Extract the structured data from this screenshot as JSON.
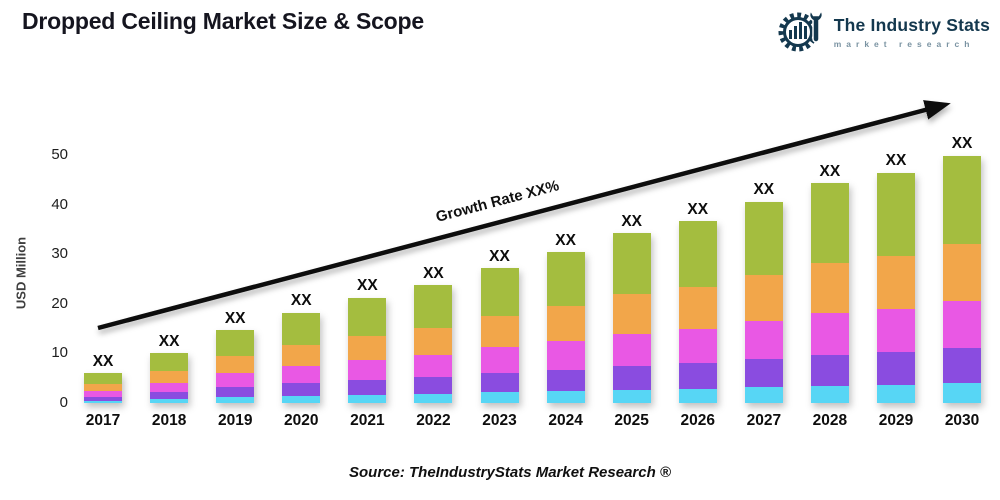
{
  "header": {
    "title": "Dropped Ceiling Market Size & Scope",
    "logo": {
      "icon": "gear-wrench-chart-icon",
      "name": "The Industry Stats",
      "subtitle": "market research",
      "brand_color": "#14384e",
      "subtitle_color": "#7a93a2"
    }
  },
  "chart_data": {
    "type": "bar",
    "stacked": true,
    "title": "Dropped Ceiling Market Size & Scope",
    "xlabel": "",
    "ylabel": "USD Million",
    "ylim": [
      0,
      55
    ],
    "yticks": [
      0,
      10,
      20,
      30,
      40,
      50
    ],
    "grid": false,
    "legend": "none",
    "categories": [
      "2017",
      "2018",
      "2019",
      "2020",
      "2021",
      "2022",
      "2023",
      "2024",
      "2025",
      "2026",
      "2027",
      "2028",
      "2029",
      "2030"
    ],
    "bar_value_labels": [
      "XX",
      "XX",
      "XX",
      "XX",
      "XX",
      "XX",
      "XX",
      "XX",
      "XX",
      "XX",
      "XX",
      "XX",
      "XX",
      "XX"
    ],
    "totals": [
      6.0,
      10.0,
      14.7,
      18.2,
      21.2,
      23.8,
      27.2,
      30.4,
      34.2,
      36.7,
      40.6,
      44.3,
      46.4,
      49.9
    ],
    "series": [
      {
        "name": "series-1-bottom",
        "color": "#57d6f5",
        "values": [
          0.5,
          0.8,
          1.2,
          1.5,
          1.7,
          1.9,
          2.2,
          2.4,
          2.7,
          2.9,
          3.2,
          3.5,
          3.7,
          4.0
        ]
      },
      {
        "name": "series-2",
        "color": "#8a4ce0",
        "values": [
          0.8,
          1.4,
          2.1,
          2.5,
          3.0,
          3.3,
          3.8,
          4.3,
          4.8,
          5.1,
          5.7,
          6.2,
          6.5,
          7.0
        ]
      },
      {
        "name": "series-3",
        "color": "#e958e4",
        "values": [
          1.1,
          1.9,
          2.8,
          3.5,
          4.0,
          4.5,
          5.2,
          5.8,
          6.5,
          7.0,
          7.7,
          8.4,
          8.8,
          9.5
        ]
      },
      {
        "name": "series-4",
        "color": "#f2a64a",
        "values": [
          1.4,
          2.3,
          3.4,
          4.2,
          4.9,
          5.5,
          6.3,
          7.0,
          7.9,
          8.4,
          9.3,
          10.2,
          10.7,
          11.5
        ]
      },
      {
        "name": "series-5-top",
        "color": "#a4bd3f",
        "values": [
          2.2,
          3.6,
          5.2,
          6.5,
          7.6,
          8.6,
          9.7,
          10.9,
          12.3,
          13.3,
          14.7,
          16.0,
          16.7,
          17.9
        ]
      }
    ],
    "annotation": {
      "text": "Growth Rate XX%",
      "type": "trend-arrow",
      "color": "#0a0a0a"
    }
  },
  "footer": {
    "source": "Source: TheIndustryStats Market Research ®"
  }
}
